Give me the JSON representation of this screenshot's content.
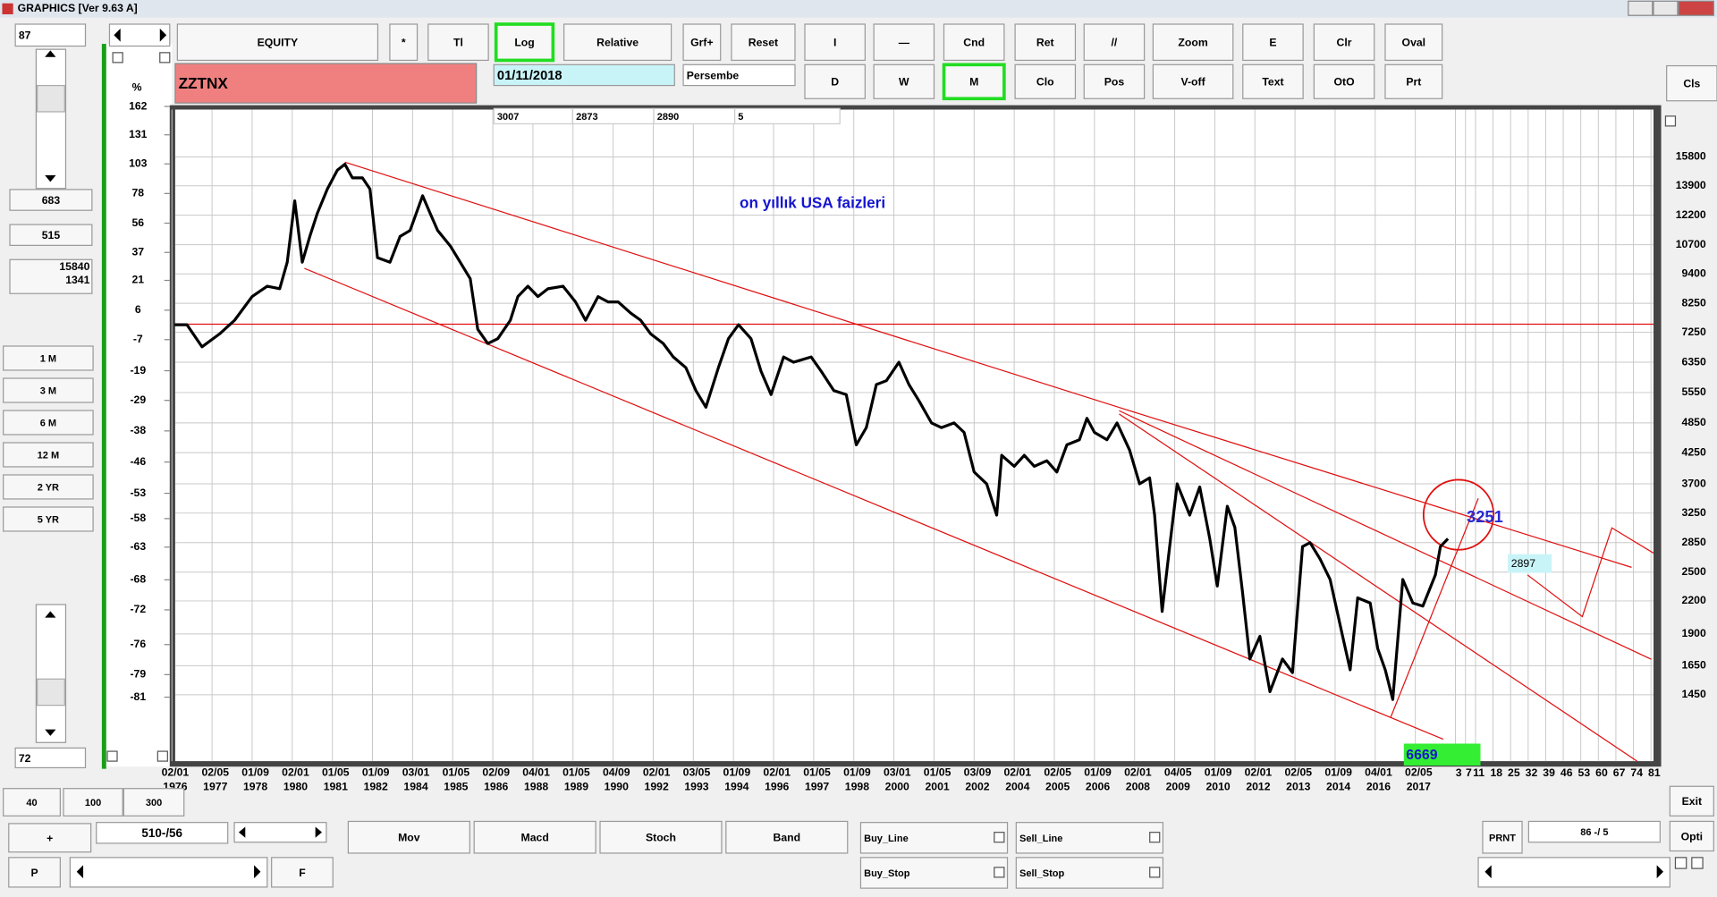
{
  "window": {
    "title": "GRAPHICS  [Ver 9.63 A]"
  },
  "left_panel": {
    "field_top": "87",
    "boxes": [
      "683",
      "515"
    ],
    "range_box": [
      "15840",
      "1341"
    ],
    "periods": [
      "1 M",
      "3 M",
      "6 M",
      "12 M",
      "2 YR",
      "5 YR"
    ],
    "field_bottom": "72"
  },
  "toolbar": {
    "row1": [
      "EQUITY",
      "*",
      "Tl",
      "Log",
      "Relative",
      "Grf+",
      "Reset",
      "I",
      "—",
      "Cnd",
      "Ret",
      "//",
      "Zoom",
      "E",
      "Clr",
      "Oval"
    ],
    "row2": [
      "D",
      "W",
      "M",
      "Clo",
      "Pos",
      "V-off",
      "Text",
      "OtO",
      "Prt"
    ],
    "cls": "Cls"
  },
  "symbol": "ZZTNX",
  "date": "01/11/2018",
  "day": "Persembe",
  "info": [
    "3007",
    "2873",
    "2890",
    "5"
  ],
  "bottom": {
    "zoom": [
      "40",
      "100",
      "300"
    ],
    "plus": "+",
    "counter": "510-/56",
    "p": "P",
    "f": "F",
    "indicators": [
      "Mov",
      "Macd",
      "Stoch",
      "Band"
    ],
    "orders": [
      "Buy_Line",
      "Sell_Line",
      "Buy_Stop",
      "Sell_Stop"
    ],
    "prnt": "PRNT",
    "counter2": "86 -/ 5",
    "exit": "Exit",
    "opti": "Opti"
  },
  "chart_data": {
    "type": "line",
    "annotation": "on yıllık USA  faizleri",
    "left_axis_label": "%",
    "labels": [
      "3251",
      "2897",
      "6669"
    ],
    "log_scale": true,
    "grid": true,
    "ylim": [
      1080,
      19500
    ],
    "yticks": [
      15800,
      13900,
      12200,
      10700,
      9400,
      8250,
      7250,
      6350,
      5550,
      4850,
      4250,
      3700,
      3250,
      2850,
      2500,
      2200,
      1900,
      1650,
      1450
    ],
    "y2lim": [
      -85.7,
      158.4
    ],
    "y2scale": "log",
    "y2ticks": [
      162,
      131,
      103,
      78,
      56,
      37,
      21,
      6,
      -7,
      -19,
      -29,
      -38,
      -46,
      -53,
      -58,
      -63,
      -68,
      -72,
      -76,
      -79,
      -81
    ],
    "xlim": [
      0,
      591
    ],
    "xticks": [
      {
        "value": 0,
        "label": "02/01 1976"
      },
      {
        "value": 16,
        "label": "02/05 1977"
      },
      {
        "value": 32,
        "label": "01/09 1978"
      },
      {
        "value": 48,
        "label": "02/01 1980"
      },
      {
        "value": 64,
        "label": "01/05 1981"
      },
      {
        "value": 80,
        "label": "01/09 1982"
      },
      {
        "value": 96,
        "label": "03/01 1984"
      },
      {
        "value": 112,
        "label": "01/05 1985"
      },
      {
        "value": 128,
        "label": "02/09 1986"
      },
      {
        "value": 144,
        "label": "04/01 1988"
      },
      {
        "value": 160,
        "label": "01/05 1989"
      },
      {
        "value": 176,
        "label": "04/09 1990"
      },
      {
        "value": 192,
        "label": "02/01 1992"
      },
      {
        "value": 208,
        "label": "03/05 1993"
      },
      {
        "value": 224,
        "label": "01/09 1994"
      },
      {
        "value": 240,
        "label": "02/01 1996"
      },
      {
        "value": 256,
        "label": "01/05 1997"
      },
      {
        "value": 272,
        "label": "01/09 1998"
      },
      {
        "value": 288,
        "label": "03/01 2000"
      },
      {
        "value": 304,
        "label": "01/05 2001"
      },
      {
        "value": 320,
        "label": "03/09 2002"
      },
      {
        "value": 336,
        "label": "02/01 2004"
      },
      {
        "value": 352,
        "label": "02/05 2005"
      },
      {
        "value": 368,
        "label": "01/09 2006"
      },
      {
        "value": 384,
        "label": "02/01 2008"
      },
      {
        "value": 400,
        "label": "04/05 2009"
      },
      {
        "value": 416,
        "label": "01/09 2010"
      },
      {
        "value": 432,
        "label": "02/01 2012"
      },
      {
        "value": 448,
        "label": "02/05 2013"
      },
      {
        "value": 464,
        "label": "01/09 2014"
      },
      {
        "value": 480,
        "label": "04/01 2016"
      },
      {
        "value": 496,
        "label": "02/05 2017"
      },
      {
        "value": 512,
        "label": "3"
      },
      {
        "value": 516,
        "label": "7"
      },
      {
        "value": 520,
        "label": "11"
      },
      {
        "value": 527,
        "label": "18"
      },
      {
        "value": 534,
        "label": "25"
      },
      {
        "value": 541,
        "label": "32"
      },
      {
        "value": 548,
        "label": "39"
      },
      {
        "value": 555,
        "label": "46"
      },
      {
        "value": 562,
        "label": "53"
      },
      {
        "value": 569,
        "label": "60"
      },
      {
        "value": 576,
        "label": "67"
      },
      {
        "value": 583,
        "label": "74"
      },
      {
        "value": 590,
        "label": "81"
      }
    ],
    "series": [
      {
        "name": "ZZTNX",
        "color": "#000000",
        "x": [
          1,
          6,
          12,
          19,
          25,
          32,
          38,
          43,
          46,
          49,
          52,
          55,
          58,
          62,
          66,
          69,
          72,
          76,
          79,
          82,
          87,
          91,
          95,
          100,
          103,
          106,
          111,
          115,
          119,
          122,
          126,
          130,
          135,
          138,
          142,
          146,
          150,
          156,
          161,
          165,
          170,
          174,
          178,
          183,
          187,
          191,
          196,
          200,
          205,
          209,
          213,
          218,
          222,
          226,
          231,
          235,
          239,
          244,
          248,
          255,
          259,
          264,
          269,
          273,
          277,
          281,
          285,
          290,
          294,
          298,
          303,
          307,
          312,
          316,
          320,
          325,
          329,
          331,
          336,
          340,
          344,
          349,
          353,
          357,
          362,
          365,
          368,
          373,
          377,
          382,
          386,
          390,
          392,
          395,
          398,
          401,
          406,
          410,
          414,
          417,
          421,
          424,
          427,
          430,
          434,
          438,
          443,
          447,
          451,
          454,
          458,
          462,
          467,
          470,
          473,
          478,
          481,
          484,
          487,
          491,
          495,
          499,
          504,
          506,
          509
        ],
        "values": [
          7500,
          7500,
          6800,
          7200,
          7650,
          8500,
          8900,
          8800,
          9900,
          13000,
          9900,
          11100,
          12300,
          13700,
          14900,
          15300,
          14400,
          14400,
          13700,
          10100,
          9900,
          11100,
          11400,
          13300,
          12300,
          11400,
          10650,
          9900,
          9200,
          7350,
          6900,
          7050,
          7650,
          8500,
          8900,
          8500,
          8800,
          8900,
          8300,
          7650,
          8500,
          8300,
          8300,
          7900,
          7650,
          7200,
          6900,
          6500,
          6200,
          5600,
          5200,
          6200,
          7050,
          7500,
          7050,
          6100,
          5500,
          6500,
          6350,
          6500,
          6100,
          5600,
          5500,
          4400,
          4750,
          5750,
          5850,
          6350,
          5750,
          5350,
          4850,
          4750,
          4850,
          4650,
          3900,
          3700,
          3220,
          4200,
          4000,
          4200,
          4000,
          4100,
          3900,
          4400,
          4500,
          4950,
          4650,
          4500,
          4850,
          4300,
          3700,
          3800,
          3220,
          2100,
          2800,
          3700,
          3220,
          3650,
          2900,
          2350,
          3350,
          3050,
          2300,
          1700,
          1880,
          1470,
          1700,
          1600,
          2800,
          2850,
          2650,
          2420,
          1880,
          1620,
          2230,
          2180,
          1780,
          1620,
          1420,
          2420,
          2180,
          2150,
          2470,
          2800,
          2900
        ]
      }
    ]
  }
}
